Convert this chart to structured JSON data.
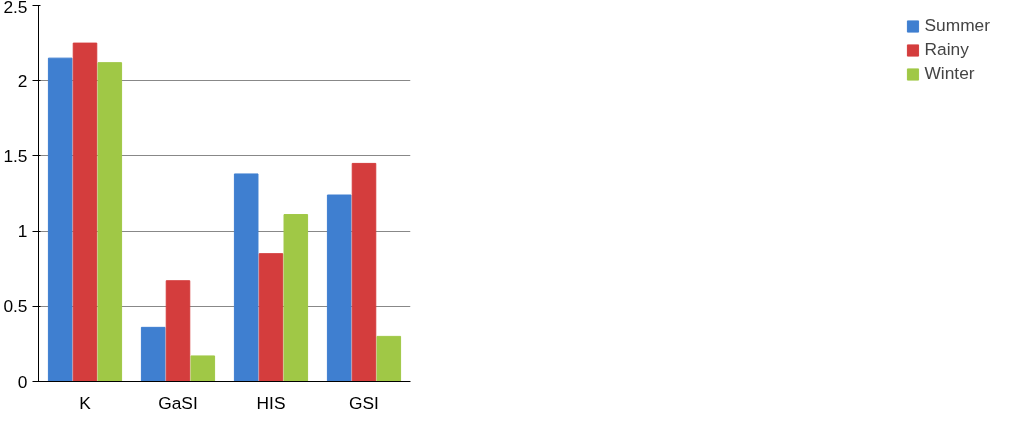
{
  "chart_data": {
    "type": "bar",
    "categories": [
      "K",
      "GaSI",
      "HIS",
      "GSI"
    ],
    "series": [
      {
        "name": "Summer",
        "color": "#3f7fd0",
        "values": [
          2.15,
          0.36,
          1.38,
          1.24
        ]
      },
      {
        "name": "Rainy",
        "color": "#d43d3d",
        "values": [
          2.25,
          0.67,
          0.85,
          1.45
        ]
      },
      {
        "name": "Winter",
        "color": "#a0c846",
        "values": [
          2.12,
          0.17,
          1.11,
          0.3
        ]
      }
    ],
    "ylim": [
      0,
      2.5
    ],
    "yticks": [
      0,
      0.5,
      1,
      1.5,
      2,
      2.5
    ],
    "grid": "y",
    "legend": "right"
  }
}
